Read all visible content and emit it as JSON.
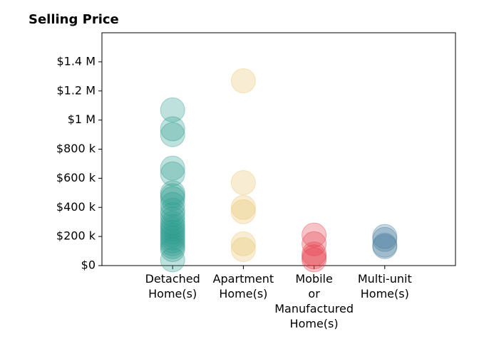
{
  "chart_data": {
    "type": "strip",
    "title": "Selling Price",
    "categories": [
      "Detached\nHome(s)",
      "Apartment\nHome(s)",
      "Mobile\nor\nManufactured\nHome(s)",
      "Multi-unit\nHome(s)"
    ],
    "values": [
      [
        1070000,
        940000,
        900000,
        670000,
        630000,
        500000,
        480000,
        460000,
        420000,
        380000,
        350000,
        320000,
        290000,
        270000,
        250000,
        230000,
        210000,
        190000,
        170000,
        150000,
        130000,
        110000,
        40000
      ],
      [
        1270000,
        570000,
        400000,
        370000,
        150000,
        110000
      ],
      [
        210000,
        150000,
        80000,
        60000,
        40000
      ],
      [
        200000,
        180000,
        140000,
        130000
      ]
    ],
    "colors": [
      "#2a9d8f",
      "#e9c46a",
      "#e63946",
      "#457b9d"
    ],
    "ylim": [
      0,
      1600000
    ],
    "yticks": [
      {
        "value": 0,
        "label": "$0"
      },
      {
        "value": 200000,
        "label": "$200 k"
      },
      {
        "value": 400000,
        "label": "$400 k"
      },
      {
        "value": 600000,
        "label": "$600 k"
      },
      {
        "value": 800000,
        "label": "$800 k"
      },
      {
        "value": 1000000,
        "label": "$1 M"
      },
      {
        "value": 1200000,
        "label": "$1.2 M"
      },
      {
        "value": 1400000,
        "label": "$1.4 M"
      }
    ]
  }
}
